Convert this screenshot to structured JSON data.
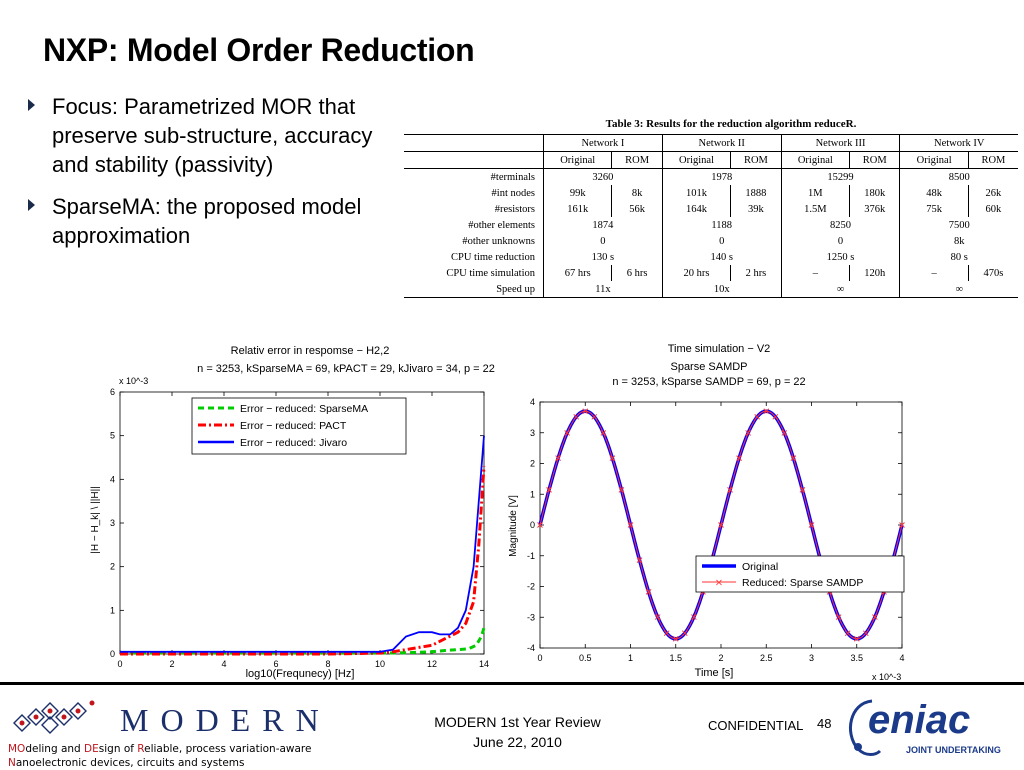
{
  "slide": {
    "title": "NXP: Model Order Reduction",
    "bullets": [
      "Focus: Parametrized MOR that preserve sub-structure, accuracy and stability (passivity)",
      "SparseMA: the proposed model approximation"
    ]
  },
  "table": {
    "caption": "Table 3: Results for the reduction algorithm reduceR.",
    "networks": [
      "Network I",
      "Network II",
      "Network III",
      "Network IV"
    ],
    "subheaders": [
      "Original",
      "ROM"
    ],
    "rows": [
      {
        "label": "#terminals",
        "cells": [
          "3260",
          "1978",
          "15299",
          "8500"
        ],
        "merged": true
      },
      {
        "label": "#int nodes",
        "cells": [
          "99k",
          "8k",
          "101k",
          "1888",
          "1M",
          "180k",
          "48k",
          "26k"
        ]
      },
      {
        "label": "#resistors",
        "cells": [
          "161k",
          "56k",
          "164k",
          "39k",
          "1.5M",
          "376k",
          "75k",
          "60k"
        ]
      },
      {
        "label": "#other elements",
        "cells": [
          "1874",
          "1188",
          "8250",
          "7500"
        ],
        "merged": true
      },
      {
        "label": "#other unknowns",
        "cells": [
          "0",
          "0",
          "0",
          "8k"
        ],
        "merged": true
      },
      {
        "label": "CPU time reduction",
        "cells": [
          "130 s",
          "140 s",
          "1250 s",
          "80 s"
        ],
        "merged": true
      },
      {
        "label": "CPU time simulation",
        "cells": [
          "67 hrs",
          "6 hrs",
          "20 hrs",
          "2 hrs",
          "–",
          "120h",
          "–",
          "470s"
        ]
      },
      {
        "label": "Speed up",
        "cells": [
          "11x",
          "10x",
          "∞",
          "∞"
        ],
        "merged": true
      }
    ]
  },
  "chart_data": [
    {
      "type": "line",
      "title": "Relativ error in respomse − H2,2",
      "subtitle": "n = 3253, kSparseMA = 69, kPACT = 29, kJivaro = 34, p = 22",
      "xlabel": "log10(Frequnecy) [Hz]",
      "ylabel": "|H − H_k| \\ ||H||",
      "exponent_label": "x 10^-3",
      "xlim": [
        0,
        14
      ],
      "ylim": [
        0,
        6
      ],
      "xticks": [
        0,
        2,
        4,
        6,
        8,
        10,
        12,
        14
      ],
      "yticks": [
        0,
        1,
        2,
        3,
        4,
        5,
        6
      ],
      "legend_position": "top-right",
      "series": [
        {
          "name": "Error − reduced: SparseMA",
          "color": "#00cc00",
          "style": "dash",
          "x": [
            0,
            2,
            4,
            6,
            8,
            10,
            11,
            12,
            12.5,
            13,
            13.4,
            13.7,
            13.9,
            14
          ],
          "y": [
            0.02,
            0.02,
            0.02,
            0.02,
            0.02,
            0.02,
            0.03,
            0.05,
            0.08,
            0.1,
            0.12,
            0.2,
            0.4,
            0.6
          ]
        },
        {
          "name": "Error − reduced: PACT",
          "color": "#ff0000",
          "style": "dashdot",
          "x": [
            0,
            2,
            4,
            6,
            8,
            10,
            10.5,
            11,
            11.5,
            12,
            12.5,
            13,
            13.3,
            13.6,
            13.8,
            14
          ],
          "y": [
            0.0,
            0.0,
            0.0,
            0.0,
            0.0,
            0.02,
            0.05,
            0.1,
            0.15,
            0.2,
            0.35,
            0.5,
            0.7,
            1.2,
            2.5,
            4.3
          ]
        },
        {
          "name": "Error − reduced: Jivaro",
          "color": "#0000ff",
          "style": "solid",
          "x": [
            0,
            2,
            4,
            6,
            8,
            10,
            10.5,
            11,
            11.5,
            12,
            12.3,
            12.7,
            13,
            13.3,
            13.6,
            13.8,
            14
          ],
          "y": [
            0.05,
            0.05,
            0.05,
            0.05,
            0.05,
            0.05,
            0.1,
            0.4,
            0.5,
            0.5,
            0.45,
            0.45,
            0.6,
            1.0,
            2.0,
            3.5,
            5.0
          ]
        }
      ]
    },
    {
      "type": "line",
      "title": "Time simulation − V2",
      "subtitle": "Sparse SAMDP",
      "subtitle2": "n = 3253, kSparse SAMDP = 69, p = 22",
      "xlabel": "Time [s]",
      "ylabel": "Magnitude [V]",
      "exponent_label": "x 10^-3",
      "xlim": [
        0,
        4
      ],
      "ylim": [
        -4,
        4
      ],
      "xticks": [
        0,
        0.5,
        1,
        1.5,
        2,
        2.5,
        3,
        3.5,
        4
      ],
      "yticks": [
        -4,
        -3,
        -2,
        -1,
        0,
        1,
        2,
        3,
        4
      ],
      "legend_position": "bottom-right",
      "function": "3.7*sin(pi*x)",
      "series": [
        {
          "name": "Original",
          "color": "#0000ff",
          "style": "solid"
        },
        {
          "name": "Reduced: Sparse SAMDP",
          "color": "#ff3333",
          "style": "marker-x"
        }
      ]
    }
  ],
  "footer": {
    "brand": "MODERN",
    "tagline_line1": [
      "MO",
      "deling and ",
      "DE",
      "sign of ",
      "R",
      "eliable, process variation-aware"
    ],
    "tagline_line2": [
      "N",
      "anoelectronic devices, circuits and systems"
    ],
    "review_line1": "MODERN 1st Year Review",
    "review_line2": "June 22, 2010",
    "confidential": "CONFIDENTIAL",
    "page_number": "48",
    "eniac_logo_text": "eniac",
    "eniac_sub": "JOINT UNDERTAKING"
  },
  "colors": {
    "brand_blue": "#1b2f6b",
    "accent_red": "#c0161d",
    "eniac_blue": "#1b3a8a"
  }
}
